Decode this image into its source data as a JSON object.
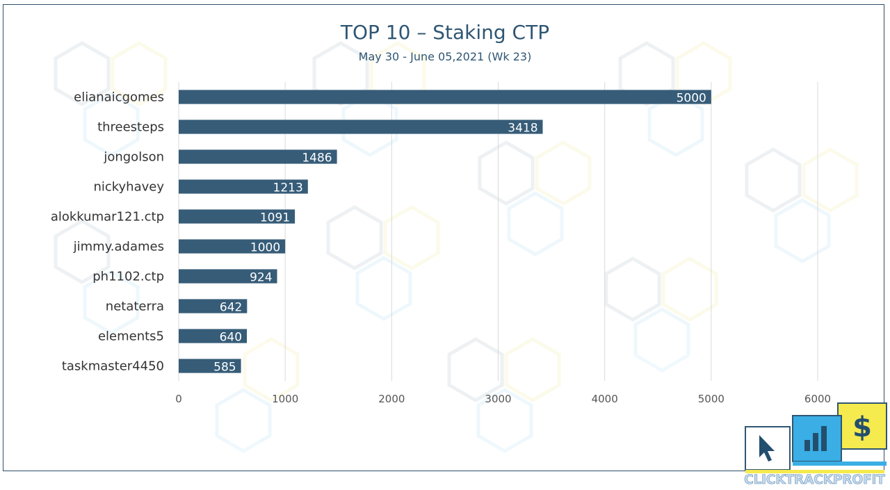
{
  "chart_data": {
    "type": "bar",
    "orientation": "horizontal",
    "title": "TOP 10 – Staking CTP",
    "subtitle": "May 30 - June 05,2021 (Wk 23)",
    "categories": [
      "elianaicgomes",
      "threesteps",
      "jongolson",
      "nickyhavey",
      "alokkumar121.ctp",
      "jimmy.adames",
      "ph1102.ctp",
      "netaterra",
      "elements5",
      "taskmaster4450"
    ],
    "values": [
      5000,
      3418,
      1486,
      1213,
      1091,
      1000,
      924,
      642,
      640,
      585
    ],
    "xticks": [
      0,
      1000,
      2000,
      3000,
      4000,
      5000,
      6000
    ],
    "xlim": [
      0,
      6000
    ],
    "grid": true,
    "data_labels": true,
    "bar_color": "#365c78"
  },
  "brand": {
    "name": "CLICKTRACKPROFIT",
    "icons": [
      "cursor-icon",
      "bar-chart-icon",
      "dollar-icon"
    ],
    "colors": {
      "blue": "#3aaee5",
      "yellow": "#f5ea4e",
      "navy": "#234e6e"
    }
  }
}
